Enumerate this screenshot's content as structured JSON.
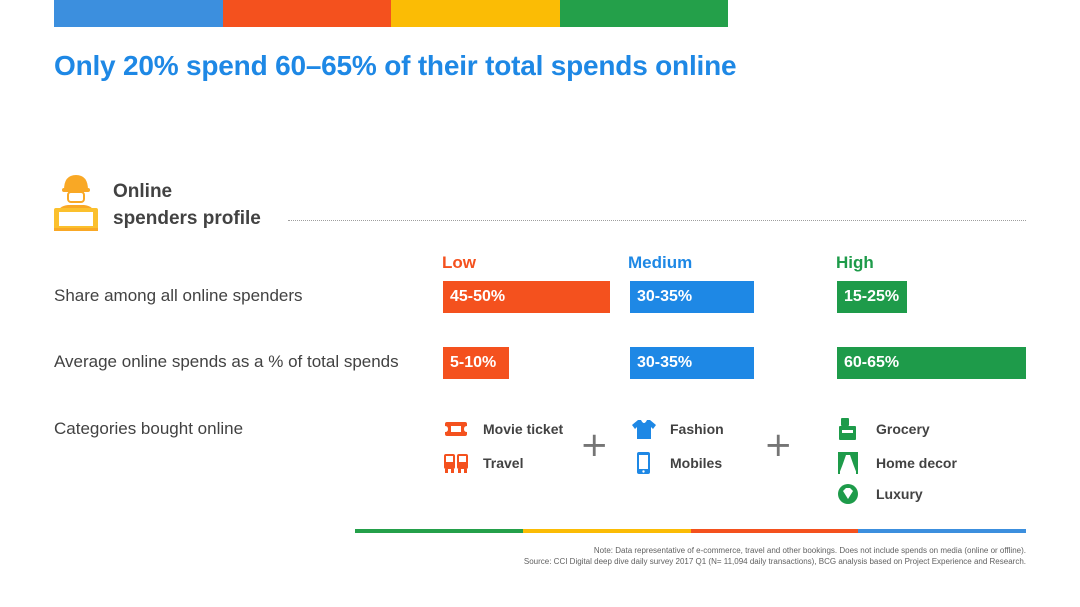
{
  "title": "Only 20% spend 60–65% of their total spends online",
  "profile": {
    "label_line1": "Online",
    "label_line2": "spenders profile"
  },
  "colors": {
    "low": "#f4511e",
    "medium": "#1e88e5",
    "high": "#1e9b4a",
    "accent_yellow": "#fbbc05",
    "blue": "#3c8fde",
    "red": "#f4511e",
    "green": "#24a04a"
  },
  "chart_data": {
    "type": "table",
    "title": "Only 20% spend 60–65% of their total spends online",
    "tiers": [
      "Low",
      "Medium",
      "High"
    ],
    "rows": [
      {
        "label": "Share among all online spenders",
        "values": [
          "45-50%",
          "30-35%",
          "15-25%"
        ],
        "numeric": [
          [
            45,
            50
          ],
          [
            30,
            35
          ],
          [
            15,
            25
          ]
        ]
      },
      {
        "label": "Average online spends as a % of total spends",
        "values": [
          "5-10%",
          "30-35%",
          "60-65%"
        ],
        "numeric": [
          [
            5,
            10
          ],
          [
            30,
            35
          ],
          [
            60,
            65
          ]
        ]
      }
    ],
    "categories_row": {
      "label": "Categories bought online",
      "low": [
        {
          "name": "Movie ticket",
          "icon": "ticket-icon"
        },
        {
          "name": "Travel",
          "icon": "bus-icon"
        }
      ],
      "medium": [
        {
          "name": "Fashion",
          "icon": "tshirt-icon"
        },
        {
          "name": "Mobiles",
          "icon": "mobile-icon"
        }
      ],
      "high": [
        {
          "name": "Grocery",
          "icon": "grocery-icon"
        },
        {
          "name": "Home decor",
          "icon": "home-decor-icon"
        },
        {
          "name": "Luxury",
          "icon": "luxury-icon"
        }
      ]
    },
    "plus_symbol": "+"
  },
  "footer": {
    "note": "Note: Data representative of e-commerce, travel and other bookings. Does not include spends on media (online or offline).",
    "source": "Source: CCI Digital deep dive daily survey 2017 Q1 (N= 11,094 daily transactions), BCG analysis based on Project Experience and Research."
  }
}
